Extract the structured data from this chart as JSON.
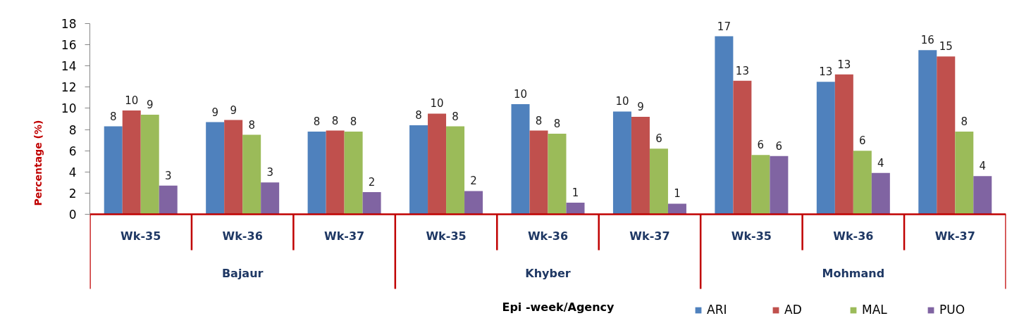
{
  "chart_data": {
    "type": "bar",
    "ylabel": "Percentage (%)",
    "legend_title": "Epi -week/Agency",
    "categories": [
      "Wk-35",
      "Wk-36",
      "Wk-37",
      "Wk-35",
      "Wk-36",
      "Wk-37",
      "Wk-35",
      "Wk-36",
      "Wk-37"
    ],
    "annotations": [
      "Bajaur",
      "Khyber",
      "Mohmand"
    ],
    "series": [
      {
        "name": "ARI",
        "color": "#4f81bd",
        "values": [
          8.3,
          8.7,
          7.8,
          8.4,
          10.4,
          9.7,
          16.8,
          12.5,
          15.5
        ],
        "value_labels": [
          "8",
          "9",
          "8",
          "8",
          "10",
          "10",
          "17",
          "13",
          "16"
        ]
      },
      {
        "name": "AD",
        "color": "#c0504d",
        "values": [
          9.8,
          8.9,
          7.9,
          9.5,
          7.9,
          9.2,
          12.6,
          13.2,
          14.9
        ],
        "value_labels": [
          "10",
          "9",
          "8",
          "10",
          "8",
          "9",
          "13",
          "13",
          "15"
        ]
      },
      {
        "name": "MAL",
        "color": "#9bbb59",
        "values": [
          9.4,
          7.5,
          7.8,
          8.3,
          7.6,
          6.2,
          5.6,
          6.0,
          7.8
        ],
        "value_labels": [
          "9",
          "8",
          "8",
          "8",
          "8",
          "6",
          "6",
          "6",
          "8"
        ]
      },
      {
        "name": "PUO",
        "color": "#8064a2",
        "values": [
          2.7,
          3.0,
          2.1,
          2.2,
          1.1,
          1.0,
          5.5,
          3.9,
          3.6
        ],
        "value_labels": [
          "3",
          "3",
          "2",
          "2",
          "1",
          "1",
          "6",
          "4",
          "4"
        ]
      }
    ],
    "ylim": [
      0,
      18
    ],
    "yticks": [
      0,
      2,
      4,
      6,
      8,
      10,
      12,
      14,
      16,
      18
    ],
    "legend": "bottom right"
  }
}
